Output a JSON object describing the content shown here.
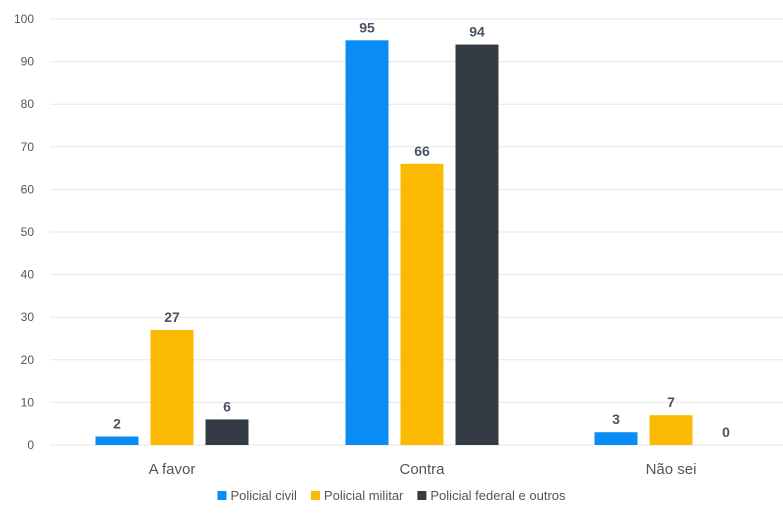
{
  "chart_data": {
    "type": "bar",
    "categories": [
      "A favor",
      "Contra",
      "Não sei"
    ],
    "series": [
      {
        "name": "Policial civil",
        "color": "#0a8cf5",
        "values": [
          2,
          95,
          3
        ]
      },
      {
        "name": "Policial militar",
        "color": "#fbb904",
        "values": [
          27,
          66,
          7
        ]
      },
      {
        "name": "Policial federal e outros",
        "color": "#343b45",
        "values": [
          6,
          94,
          0
        ]
      }
    ],
    "title": "",
    "xlabel": "",
    "ylabel": "",
    "ylim": [
      0,
      100
    ],
    "yticks": [
      0,
      10,
      20,
      30,
      40,
      50,
      60,
      70,
      80,
      90,
      100
    ],
    "grid": true,
    "legend": "bottom",
    "data_labels": true
  }
}
